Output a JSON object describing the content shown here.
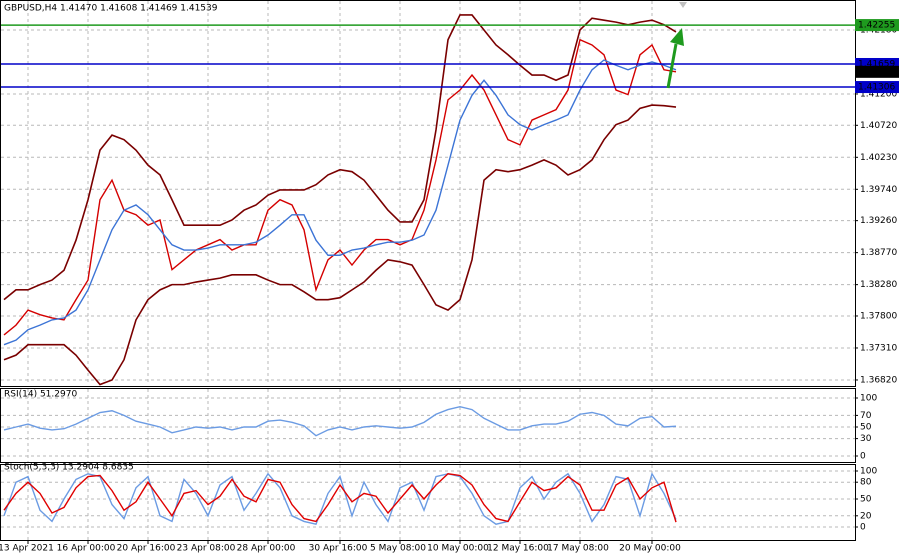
{
  "chart_data": [
    {
      "type": "line",
      "title": "GBPUSD,H4  1.41470 1.41608 1.41469 1.41539",
      "categories": [
        null,
        null,
        "13 Apr 2021",
        null,
        null,
        null,
        null,
        "16 Apr 00:00",
        null,
        null,
        null,
        null,
        "20 Apr 16:00",
        null,
        null,
        null,
        null,
        "23 Apr 08:00",
        null,
        null,
        null,
        null,
        "28 Apr 00:00",
        null,
        null,
        null,
        null,
        null,
        "30 Apr 16:00",
        null,
        null,
        null,
        null,
        "5 May 08:00",
        null,
        null,
        null,
        null,
        "10 May 00:00",
        null,
        null,
        null,
        null,
        "12 May 16:00",
        null,
        null,
        null,
        null,
        "17 May 08:00",
        null,
        null,
        null,
        null,
        null,
        "20 May 00:00",
        null,
        null
      ],
      "series": [
        {
          "color": "#d40000",
          "values": [
            1.3751,
            1.3766,
            1.3789,
            1.3782,
            1.3777,
            1.3774,
            1.3805,
            1.3835,
            1.3958,
            1.3988,
            1.3942,
            1.3935,
            1.3919,
            1.3927,
            1.3851,
            1.3866,
            1.3881,
            1.3889,
            1.3897,
            1.3881,
            1.3889,
            1.3889,
            1.3942,
            1.3958,
            1.395,
            1.3912,
            1.382,
            1.3866,
            1.3881,
            1.3858,
            1.3881,
            1.3897,
            1.3897,
            1.3889,
            1.3897,
            1.3942,
            1.4019,
            1.4111,
            1.4126,
            1.4149,
            1.4126,
            1.4088,
            1.405,
            1.4042,
            1.408,
            1.4088,
            1.4096,
            1.4126,
            1.4203,
            1.4195,
            1.418,
            1.4126,
            1.4119,
            1.418,
            1.4195,
            1.4157,
            1.41539
          ]
        },
        {
          "color": "#7a0000",
          "values": [
            1.3805,
            1.382,
            1.382,
            1.3828,
            1.3835,
            1.385,
            1.3896,
            1.3958,
            1.4034,
            1.4057,
            1.405,
            1.4034,
            1.4011,
            1.3996,
            1.3958,
            1.3919,
            1.3919,
            1.3919,
            1.3919,
            1.3927,
            1.3942,
            1.395,
            1.3965,
            1.3973,
            1.3973,
            1.3973,
            1.3981,
            1.3996,
            1.4004,
            1.4001,
            1.3988,
            1.3965,
            1.3942,
            1.3924,
            1.3924,
            1.3958,
            1.4065,
            1.4203,
            1.4241,
            1.4241,
            1.4218,
            1.4195,
            1.418,
            1.4164,
            1.4149,
            1.4149,
            1.4141,
            1.4149,
            1.4218,
            1.4236,
            1.4233,
            1.423,
            1.4226,
            1.423,
            1.4233,
            1.4226,
            1.4215
          ]
        },
        {
          "color": "#7a0000",
          "values": [
            1.3713,
            1.372,
            1.3736,
            1.3736,
            1.3736,
            1.3736,
            1.372,
            1.3697,
            1.3675,
            1.3682,
            1.3713,
            1.3774,
            1.3805,
            1.382,
            1.3828,
            1.3828,
            1.3832,
            1.3835,
            1.3838,
            1.3843,
            1.3843,
            1.3843,
            1.3835,
            1.3828,
            1.3828,
            1.3817,
            1.3805,
            1.3805,
            1.3808,
            1.382,
            1.3832,
            1.385,
            1.3866,
            1.3863,
            1.3858,
            1.3828,
            1.3797,
            1.3789,
            1.3805,
            1.3866,
            1.3988,
            1.4004,
            1.4001,
            1.4004,
            1.4011,
            1.4019,
            1.4011,
            1.3996,
            1.4004,
            1.4019,
            1.405,
            1.4073,
            1.408,
            1.4098,
            1.4103,
            1.4102,
            1.41
          ]
        },
        {
          "color": "#3c74d6",
          "values": [
            1.3736,
            1.3743,
            1.3759,
            1.3766,
            1.3774,
            1.3777,
            1.3789,
            1.382,
            1.3866,
            1.3912,
            1.3942,
            1.395,
            1.3935,
            1.3912,
            1.3889,
            1.3881,
            1.3881,
            1.3884,
            1.3889,
            1.3889,
            1.3889,
            1.3893,
            1.3904,
            1.3919,
            1.3935,
            1.3935,
            1.3896,
            1.3873,
            1.3873,
            1.3881,
            1.3884,
            1.3889,
            1.3893,
            1.3893,
            1.3896,
            1.3904,
            1.3942,
            1.4011,
            1.408,
            1.4118,
            1.4141,
            1.4118,
            1.4088,
            1.4073,
            1.4065,
            1.4073,
            1.408,
            1.4088,
            1.4126,
            1.4157,
            1.4172,
            1.4164,
            1.4157,
            1.4164,
            1.4169,
            1.4164,
            1.4157
          ]
        }
      ],
      "ylim": [
        1.36743,
        1.42639
      ],
      "yticks": [
        {
          "value": 1.3682,
          "label": "1.36820"
        },
        {
          "value": 1.3731,
          "label": "1.37310"
        },
        {
          "value": 1.378,
          "label": "1.37800"
        },
        {
          "value": 1.3828,
          "label": "1.38280"
        },
        {
          "value": 1.3877,
          "label": "1.38770"
        },
        {
          "value": 1.3926,
          "label": "1.39260"
        },
        {
          "value": 1.3974,
          "label": "1.39740"
        },
        {
          "value": 1.4023,
          "label": "1.40230"
        },
        {
          "value": 1.4072,
          "label": "1.40720"
        },
        {
          "value": 1.412,
          "label": "1.41200"
        },
        {
          "value": 1.4218,
          "label": "1.42180"
        }
      ],
      "grid": true,
      "levels": [
        {
          "value": 1.42255,
          "color": "#1e9a1e"
        },
        {
          "value": 1.41659,
          "color": "#0000c8"
        },
        {
          "value": 1.41306,
          "color": "#0000c8"
        }
      ],
      "last_price": 1.41539
    },
    {
      "type": "line",
      "title": "RSI(14) 51.2970",
      "series": [
        {
          "color": "#6b9be3",
          "values": [
            45,
            50,
            55,
            48,
            45,
            47,
            55,
            65,
            75,
            78,
            70,
            60,
            55,
            50,
            40,
            45,
            50,
            48,
            50,
            45,
            50,
            50,
            60,
            62,
            58,
            52,
            35,
            45,
            50,
            45,
            50,
            52,
            50,
            48,
            50,
            58,
            72,
            80,
            85,
            80,
            65,
            55,
            45,
            45,
            52,
            55,
            55,
            60,
            72,
            75,
            70,
            55,
            52,
            65,
            68,
            50,
            51.297
          ]
        }
      ],
      "ylim": [
        0,
        100
      ],
      "yticks": [
        0,
        30,
        50,
        70,
        100
      ],
      "grid": true
    },
    {
      "type": "line",
      "title": "Stoch(5,3,3) 13.2904 8.6835",
      "series": [
        {
          "color": "#6b9be3",
          "values": [
            20,
            80,
            90,
            30,
            10,
            50,
            85,
            95,
            90,
            40,
            15,
            70,
            90,
            20,
            10,
            85,
            60,
            20,
            75,
            90,
            30,
            60,
            95,
            70,
            20,
            10,
            5,
            60,
            90,
            20,
            80,
            40,
            10,
            70,
            80,
            30,
            90,
            95,
            90,
            60,
            20,
            5,
            10,
            70,
            90,
            50,
            80,
            95,
            60,
            10,
            40,
            90,
            85,
            20,
            95,
            60,
            13.2904
          ]
        },
        {
          "color": "#e00000",
          "values": [
            30,
            60,
            80,
            60,
            25,
            35,
            70,
            90,
            92,
            65,
            30,
            45,
            80,
            50,
            20,
            60,
            65,
            40,
            55,
            85,
            55,
            45,
            85,
            80,
            40,
            15,
            10,
            40,
            75,
            45,
            60,
            55,
            25,
            50,
            75,
            50,
            75,
            95,
            92,
            75,
            40,
            15,
            10,
            45,
            80,
            65,
            70,
            90,
            75,
            30,
            30,
            75,
            88,
            50,
            70,
            80,
            8.6835
          ]
        }
      ],
      "ylim": [
        0,
        100
      ],
      "yticks": [
        0,
        20,
        50,
        80,
        100
      ],
      "grid": true
    }
  ]
}
